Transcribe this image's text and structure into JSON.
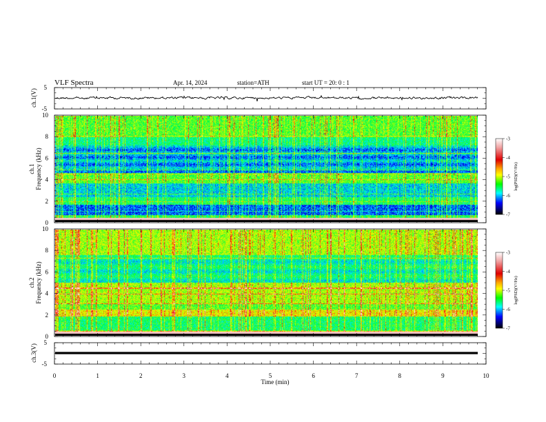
{
  "header": {
    "title": "VLF Spectra",
    "date": "Apr. 14, 2024",
    "station": "station=ATH",
    "start": "start UT = 20: 0 : 1"
  },
  "chart_data": [
    {
      "type": "line",
      "name": "ch1-waveform",
      "ylabel": "ch.1(V)",
      "ylim": [
        -5,
        5
      ],
      "yticks": [
        "5",
        "-5"
      ],
      "xlim": [
        0,
        10
      ]
    },
    {
      "type": "heatmap",
      "name": "ch1-spectrogram",
      "ylabel": "ch.1\nFrequency (kHz)",
      "ylabel_channel": "ch.1",
      "ylabel_freq": "Frequency (kHz)",
      "ylim": [
        0,
        10
      ],
      "yticks": [
        "0",
        "2",
        "4",
        "6",
        "8",
        "10"
      ],
      "xlim": [
        0,
        10
      ],
      "colorbar": {
        "label": "log(PSD)(V²/Hz)",
        "range": [
          -7,
          -3
        ],
        "ticks": [
          "-3",
          "-4",
          "-5",
          "-6",
          "-7"
        ]
      }
    },
    {
      "type": "heatmap",
      "name": "ch2-spectrogram",
      "ylabel_channel": "ch.2",
      "ylabel_freq": "Frequency (kHz)",
      "ylim": [
        0,
        10
      ],
      "yticks": [
        "0",
        "2",
        "4",
        "6",
        "8",
        "10"
      ],
      "xlim": [
        0,
        10
      ],
      "colorbar": {
        "label": "log(PSD)(V²/Hz)",
        "range": [
          -7,
          -3
        ],
        "ticks": [
          "-3",
          "-4",
          "-5",
          "-6",
          "-7"
        ]
      }
    },
    {
      "type": "line",
      "name": "ch3-waveform",
      "ylabel": "ch.3(V)",
      "ylim": [
        -5,
        5
      ],
      "yticks": [
        "5",
        "-5"
      ],
      "xlim": [
        0,
        10
      ],
      "xlabel": "Time (min)",
      "xticks": [
        "0",
        "1",
        "2",
        "3",
        "4",
        "5",
        "6",
        "7",
        "8",
        "9",
        "10"
      ]
    }
  ],
  "colors": {
    "colormap": [
      "#ffffff",
      "#e00000",
      "#ffff00",
      "#00ff00",
      "#00ffff",
      "#0000ff",
      "#000000"
    ]
  }
}
